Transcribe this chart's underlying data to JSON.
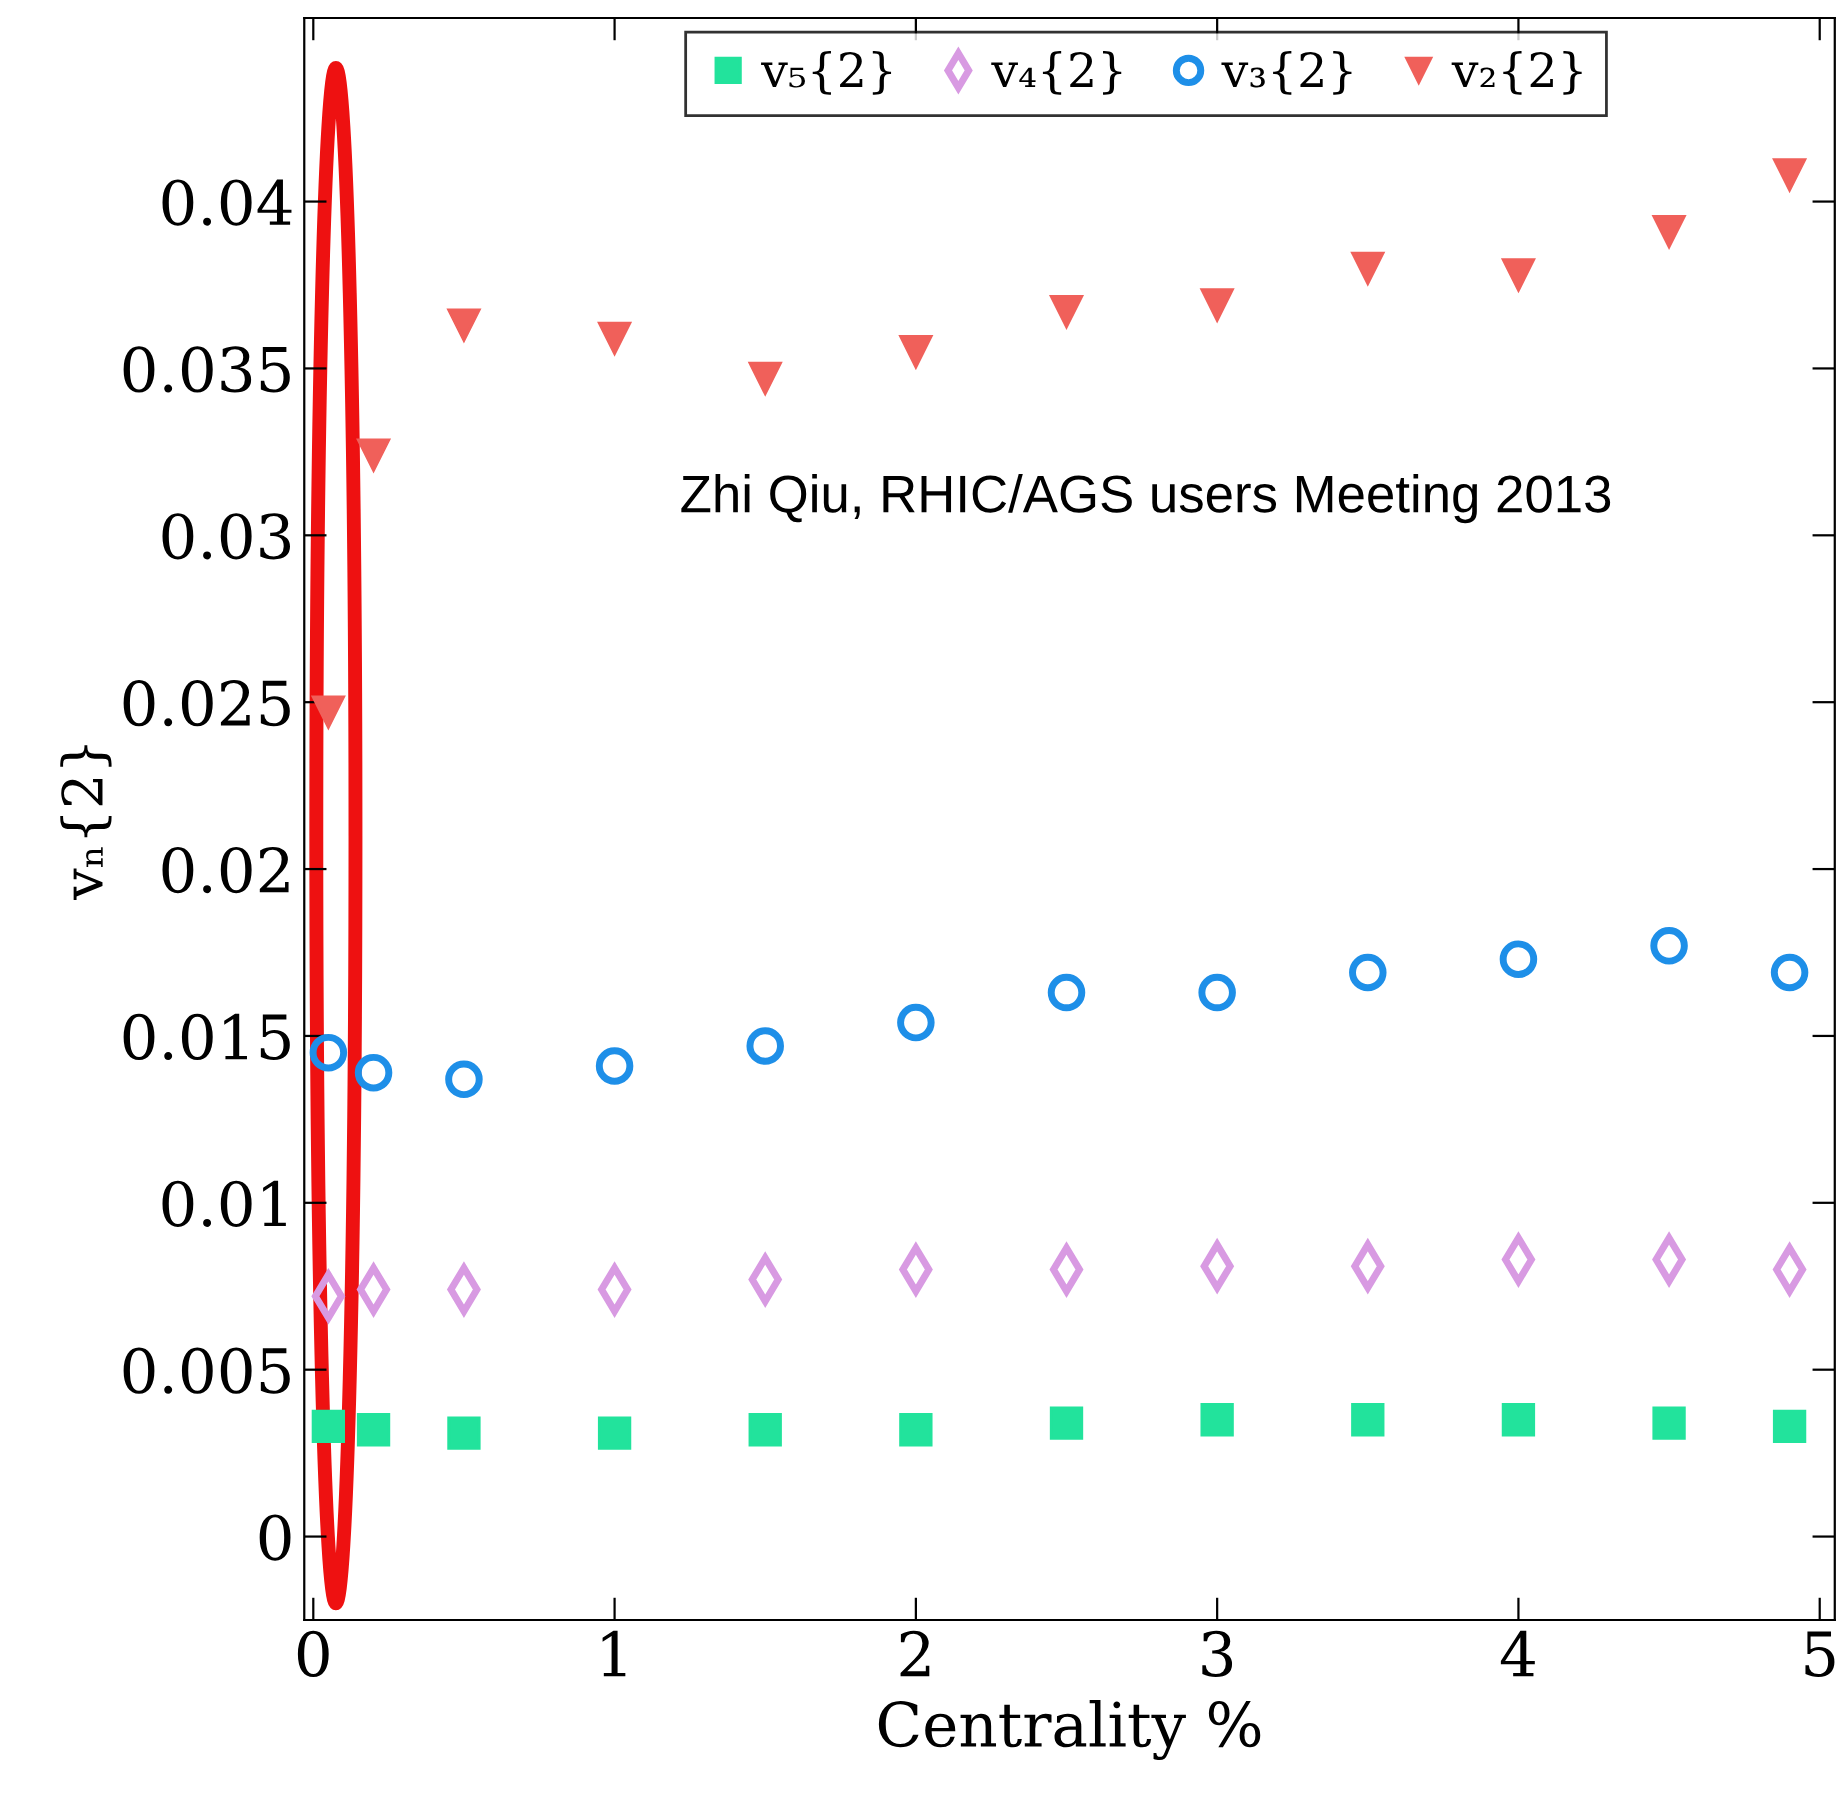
{
  "chart_data": {
    "type": "scatter",
    "xlabel": "Centrality %",
    "ylabel": "vₙ{2}",
    "xlim": [
      -0.03,
      5.05
    ],
    "ylim": [
      -0.0025,
      0.0455
    ],
    "xticks": [
      0,
      1,
      2,
      3,
      4,
      5
    ],
    "yticks": [
      0,
      0.005,
      0.01,
      0.015,
      0.02,
      0.025,
      0.03,
      0.035,
      0.04
    ],
    "x": [
      0.05,
      0.2,
      0.5,
      1,
      1.5,
      2,
      2.5,
      3,
      3.5,
      4,
      4.5,
      4.9
    ],
    "grid": false,
    "legend": "top",
    "series": [
      {
        "name": "v₅{2}",
        "color": "#22e39c",
        "marker": "square",
        "values": [
          0.0033,
          0.0032,
          0.0031,
          0.0031,
          0.0032,
          0.0032,
          0.0034,
          0.0035,
          0.0035,
          0.0035,
          0.0034,
          0.0033
        ]
      },
      {
        "name": "v₄{2}",
        "color": "#d89ae2",
        "marker": "diamond",
        "values": [
          0.0072,
          0.0074,
          0.0074,
          0.0074,
          0.0077,
          0.008,
          0.008,
          0.0081,
          0.0081,
          0.0083,
          0.0083,
          0.008
        ]
      },
      {
        "name": "v₃{2}",
        "color": "#1e8fe8",
        "marker": "circle",
        "values": [
          0.0145,
          0.0139,
          0.0137,
          0.0141,
          0.0147,
          0.0154,
          0.0163,
          0.0163,
          0.0169,
          0.0173,
          0.0177,
          0.0169
        ]
      },
      {
        "name": "v₂{2}",
        "color": "#f0605a",
        "marker": "triangle",
        "values": [
          0.0247,
          0.0324,
          0.0363,
          0.0359,
          0.0347,
          0.0355,
          0.0367,
          0.0369,
          0.038,
          0.0378,
          0.0391,
          0.0408
        ]
      }
    ],
    "annotations": [
      "Zhi Qiu, RHIC/AGS users Meeting 2013"
    ]
  }
}
